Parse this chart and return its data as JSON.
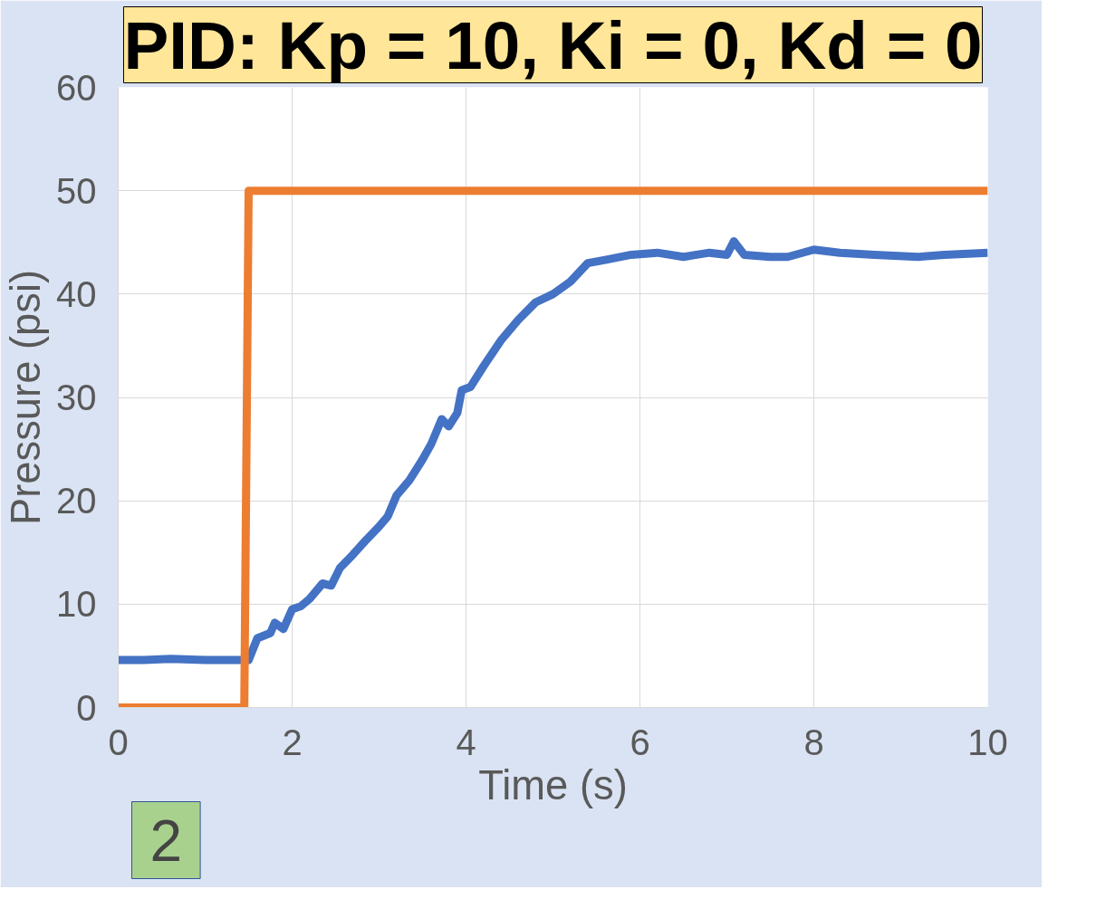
{
  "chart_data": {
    "type": "line",
    "title": "PID: Kp = 10, Ki = 0, Kd = 0",
    "xlabel": "Time (s)",
    "ylabel": "Pressure (psi)",
    "xlim": [
      0,
      10
    ],
    "xticks": [
      0,
      2,
      4,
      6,
      8,
      10
    ],
    "ylim": [
      0,
      60
    ],
    "yticks": [
      0,
      10,
      20,
      30,
      40,
      50,
      60
    ],
    "grid": true,
    "marker": "none",
    "line_style": "solid",
    "annotations": [
      "2"
    ],
    "series": [
      {
        "color": "#4472c4",
        "x": [
          0,
          0.3,
          0.6,
          1.0,
          1.5,
          1.6,
          1.75,
          1.8,
          1.9,
          2.0,
          2.1,
          2.2,
          2.35,
          2.45,
          2.55,
          2.7,
          2.85,
          3.0,
          3.1,
          3.2,
          3.35,
          3.5,
          3.6,
          3.72,
          3.8,
          3.9,
          3.95,
          4.05,
          4.2,
          4.4,
          4.6,
          4.8,
          5.0,
          5.2,
          5.4,
          5.6,
          5.9,
          6.2,
          6.5,
          6.8,
          7.0,
          7.08,
          7.2,
          7.5,
          7.7,
          8.0,
          8.3,
          8.7,
          9.2,
          9.5,
          10
        ],
        "values": [
          4.6,
          4.6,
          4.7,
          4.6,
          4.6,
          6.7,
          7.2,
          8.2,
          7.6,
          9.5,
          9.8,
          10.5,
          12.0,
          11.8,
          13.5,
          14.8,
          16.2,
          17.5,
          18.5,
          20.5,
          22.0,
          24.0,
          25.5,
          27.9,
          27.2,
          28.5,
          30.7,
          31.0,
          33.0,
          35.5,
          37.5,
          39.2,
          40.0,
          41.2,
          43.0,
          43.3,
          43.8,
          44.0,
          43.6,
          44.0,
          43.8,
          45.1,
          43.8,
          43.6,
          43.6,
          44.3,
          44.0,
          43.8,
          43.6,
          43.8,
          44.0
        ]
      },
      {
        "color": "#ed7d31",
        "x": [
          0,
          1.45,
          1.5,
          10
        ],
        "values": [
          0,
          0,
          50,
          50
        ]
      }
    ]
  }
}
